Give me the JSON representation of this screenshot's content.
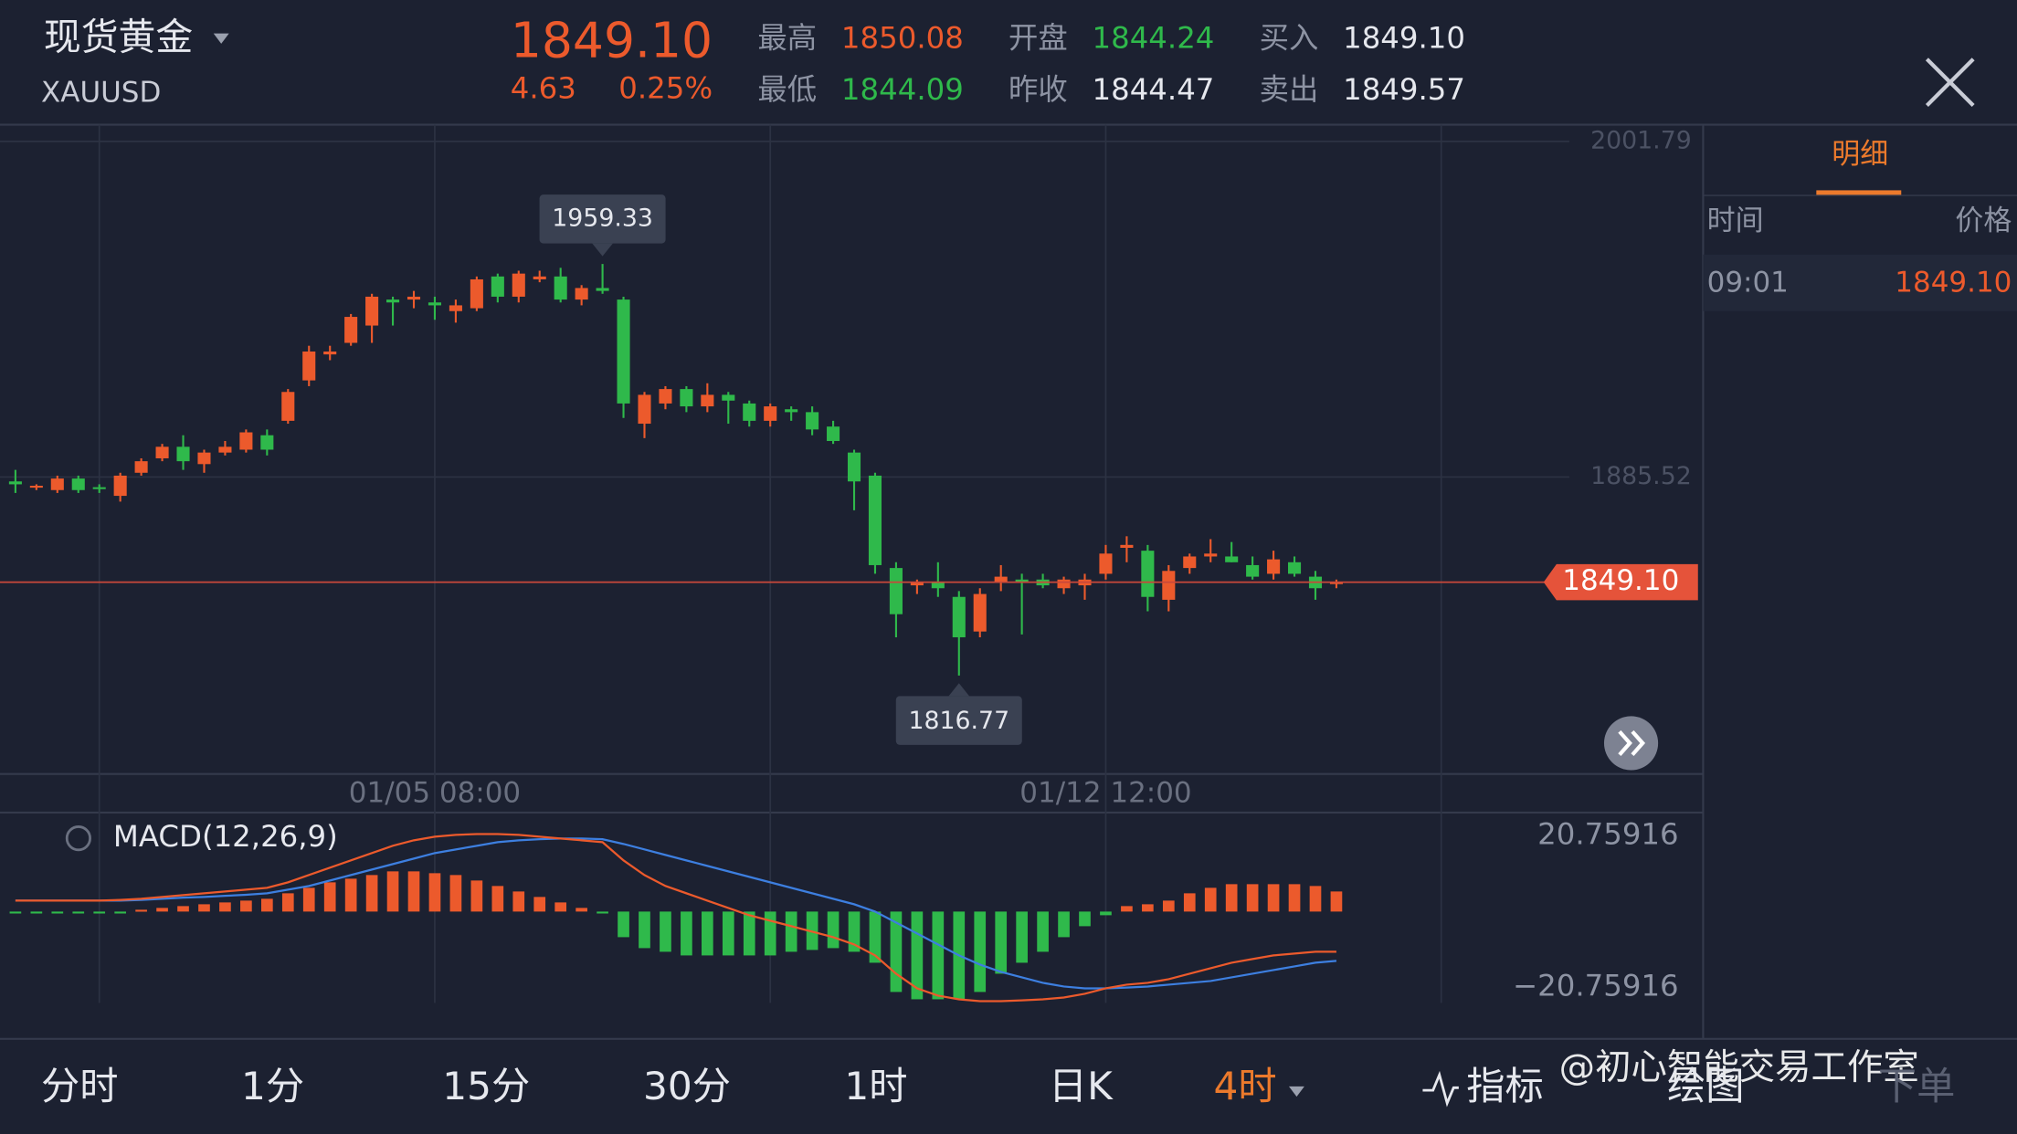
{
  "header": {
    "name": "现货黄金",
    "code": "XAUUSD",
    "price": "1849.10",
    "change": "4.63",
    "change_pct": "0.25%",
    "stats": [
      {
        "label": "最高",
        "value": "1850.08",
        "tone": "up"
      },
      {
        "label": "最低",
        "value": "1844.09",
        "tone": "down"
      },
      {
        "label": "开盘",
        "value": "1844.24",
        "tone": "down"
      },
      {
        "label": "昨收",
        "value": "1844.47",
        "tone": "plain"
      },
      {
        "label": "买入",
        "value": "1849.10",
        "tone": "plain"
      },
      {
        "label": "卖出",
        "value": "1849.57",
        "tone": "plain"
      }
    ]
  },
  "side_panel": {
    "tab": "明细",
    "columns": [
      "时间",
      "价格"
    ],
    "rows": [
      [
        "09:01",
        "1849.10"
      ]
    ]
  },
  "chart_data": [
    {
      "type": "candlestick",
      "up_color": "#ec5a2c",
      "down_color": "#2fb94b",
      "categories": [
        null,
        null,
        null,
        null,
        null,
        null,
        null,
        null,
        null,
        null,
        null,
        null,
        null,
        null,
        null,
        null,
        null,
        null,
        null,
        null,
        "01/05 08:00",
        null,
        null,
        null,
        null,
        null,
        null,
        null,
        null,
        null,
        null,
        null,
        null,
        null,
        null,
        null,
        null,
        null,
        null,
        null,
        null,
        null,
        null,
        null,
        null,
        null,
        null,
        null,
        null,
        null,
        null,
        null,
        "01/12 12:00",
        null,
        null,
        null,
        null,
        null,
        null,
        null,
        null,
        null,
        null,
        null
      ],
      "candles": [
        [
          1884,
          1888,
          1880,
          1883
        ],
        [
          1882,
          1883,
          1881,
          1882.5
        ],
        [
          1881,
          1886,
          1880,
          1885
        ],
        [
          1885,
          1886,
          1880,
          1881
        ],
        [
          1882,
          1883,
          1880,
          1881.5
        ],
        [
          1879,
          1887,
          1877,
          1886
        ],
        [
          1887,
          1892,
          1886,
          1891
        ],
        [
          1892,
          1897,
          1891,
          1896
        ],
        [
          1896,
          1900,
          1888,
          1891
        ],
        [
          1890,
          1895,
          1887,
          1894
        ],
        [
          1894,
          1898,
          1893,
          1896
        ],
        [
          1895,
          1902,
          1894,
          1901
        ],
        [
          1900,
          1902,
          1893,
          1895
        ],
        [
          1905,
          1916,
          1904,
          1915
        ],
        [
          1919,
          1931,
          1917,
          1929
        ],
        [
          1928,
          1931,
          1926,
          1929
        ],
        [
          1932,
          1942,
          1931,
          1941
        ],
        [
          1938,
          1949,
          1932,
          1948
        ],
        [
          1947,
          1948,
          1938,
          1946
        ],
        [
          1947,
          1950,
          1944,
          1948
        ],
        [
          1946,
          1948,
          1940,
          1945
        ],
        [
          1943,
          1947,
          1939,
          1945
        ],
        [
          1944,
          1955,
          1943,
          1954
        ],
        [
          1955,
          1956,
          1946,
          1948
        ],
        [
          1948,
          1957,
          1946,
          1956
        ],
        [
          1954,
          1957,
          1953,
          1955
        ],
        [
          1955,
          1958,
          1946,
          1947
        ],
        [
          1947,
          1952,
          1945,
          1951
        ],
        [
          1951,
          1959.33,
          1949,
          1950
        ],
        [
          1947,
          1948,
          1906,
          1911
        ],
        [
          1904,
          1915,
          1899,
          1914
        ],
        [
          1911,
          1917,
          1909,
          1916
        ],
        [
          1916,
          1917,
          1908,
          1910
        ],
        [
          1910,
          1918,
          1908,
          1914
        ],
        [
          1914,
          1915,
          1904,
          1912
        ],
        [
          1911,
          1912,
          1903,
          1905
        ],
        [
          1905,
          1911,
          1903,
          1910
        ],
        [
          1909,
          1910,
          1905,
          1908
        ],
        [
          1908,
          1910,
          1900,
          1902
        ],
        [
          1903,
          1905,
          1897,
          1898
        ],
        [
          1894,
          1895,
          1874,
          1884
        ],
        [
          1886,
          1887,
          1852,
          1855
        ],
        [
          1854,
          1856,
          1830,
          1838
        ],
        [
          1848,
          1850,
          1845,
          1849
        ],
        [
          1849,
          1856,
          1844,
          1847
        ],
        [
          1844,
          1846,
          1816.77,
          1830
        ],
        [
          1832,
          1847,
          1830,
          1845
        ],
        [
          1849,
          1855,
          1846,
          1851
        ],
        [
          1850,
          1852,
          1831,
          1849
        ],
        [
          1850,
          1852,
          1847,
          1848
        ],
        [
          1847,
          1851,
          1845,
          1850
        ],
        [
          1848,
          1852,
          1843,
          1850
        ],
        [
          1852,
          1862,
          1850,
          1859
        ],
        [
          1861,
          1865,
          1856,
          1862
        ],
        [
          1860,
          1862,
          1839,
          1844
        ],
        [
          1843,
          1855,
          1839,
          1853
        ],
        [
          1854,
          1859,
          1852,
          1858
        ],
        [
          1858,
          1864,
          1856,
          1859
        ],
        [
          1858,
          1863,
          1856,
          1856
        ],
        [
          1855,
          1858,
          1850,
          1851
        ],
        [
          1852,
          1860,
          1850,
          1857
        ],
        [
          1856,
          1858,
          1851,
          1852
        ],
        [
          1851,
          1853,
          1843,
          1847
        ],
        [
          1849,
          1850,
          1847,
          1849.1
        ]
      ],
      "high_index": 28,
      "low_index": 45,
      "price_line": {
        "value": 1849.1,
        "label": "1849.10"
      },
      "ylim": [
        1782.64,
        2006.24
      ],
      "yticks": [
        2001.79,
        1885.52
      ],
      "grid": true
    },
    {
      "type": "macd",
      "title": "MACD(12,26,9)",
      "dif_color": "#ec5a2c",
      "dea_color": "#3d7fe0",
      "histogram": [
        -0.3,
        -0.3,
        -0.3,
        -0.3,
        -0.3,
        -0.3,
        0.5,
        1,
        1.5,
        2,
        2.5,
        3,
        3.5,
        5,
        6.5,
        8,
        9,
        10,
        11,
        11,
        10.5,
        10,
        8.5,
        7,
        5.5,
        4,
        2.5,
        1,
        -0.3,
        -7,
        -10,
        -11,
        -12,
        -12,
        -12,
        -12,
        -12,
        -11,
        -10.5,
        -10,
        -11,
        -14,
        -22,
        -24,
        -24,
        -24,
        -22,
        -17,
        -14,
        -11,
        -7,
        -4,
        -1,
        1.5,
        2,
        3,
        5,
        6.5,
        7.5,
        7.5,
        7.5,
        7.5,
        7,
        5.5
      ],
      "dif": [
        3,
        3,
        3,
        3,
        3,
        3.2,
        3.5,
        4,
        4.5,
        5,
        5.5,
        6,
        6.5,
        8,
        10,
        12,
        14,
        16,
        18,
        19.5,
        20.5,
        21,
        21.2,
        21.2,
        21,
        20.5,
        20,
        19.5,
        19,
        14,
        10,
        7,
        5,
        3,
        1,
        -1,
        -2.5,
        -4,
        -5.5,
        -7,
        -9,
        -12,
        -17,
        -21,
        -23,
        -24,
        -24.5,
        -24.5,
        -24.3,
        -24,
        -23.5,
        -22.5,
        -21,
        -20,
        -19.5,
        -18.5,
        -17,
        -15.5,
        -14,
        -13,
        -12,
        -11.5,
        -11,
        -11
      ],
      "dea": [
        3,
        3,
        3,
        3,
        3,
        3,
        3.2,
        3.5,
        3.8,
        4,
        4.3,
        4.6,
        5,
        6,
        7,
        8.5,
        10,
        11.5,
        13,
        14.5,
        16,
        17,
        18,
        19,
        19.5,
        19.8,
        20,
        20,
        19.8,
        18.5,
        17,
        15.5,
        14,
        12.5,
        11,
        9.5,
        8,
        6.5,
        5,
        3.5,
        2,
        0,
        -3,
        -6,
        -9,
        -12,
        -14.5,
        -16.5,
        -18,
        -19.5,
        -20.5,
        -21,
        -21,
        -20.8,
        -20.5,
        -20,
        -19.5,
        -19,
        -18,
        -17,
        -16,
        -15,
        -14,
        -13.5
      ],
      "ylim": [
        -34.83,
        27.09
      ],
      "yticks": [
        20.75916,
        {
          "value": -20.75916,
          "label": "−20.75916"
        }
      ]
    }
  ],
  "toolbar": {
    "tabs": [
      "分时",
      "1分",
      "15分",
      "30分",
      "1时",
      "日K",
      "4时"
    ],
    "active_tab": 6,
    "tools": [
      "指标",
      "绘图",
      "下单"
    ]
  },
  "watermark": "@初心智能交易工作室"
}
